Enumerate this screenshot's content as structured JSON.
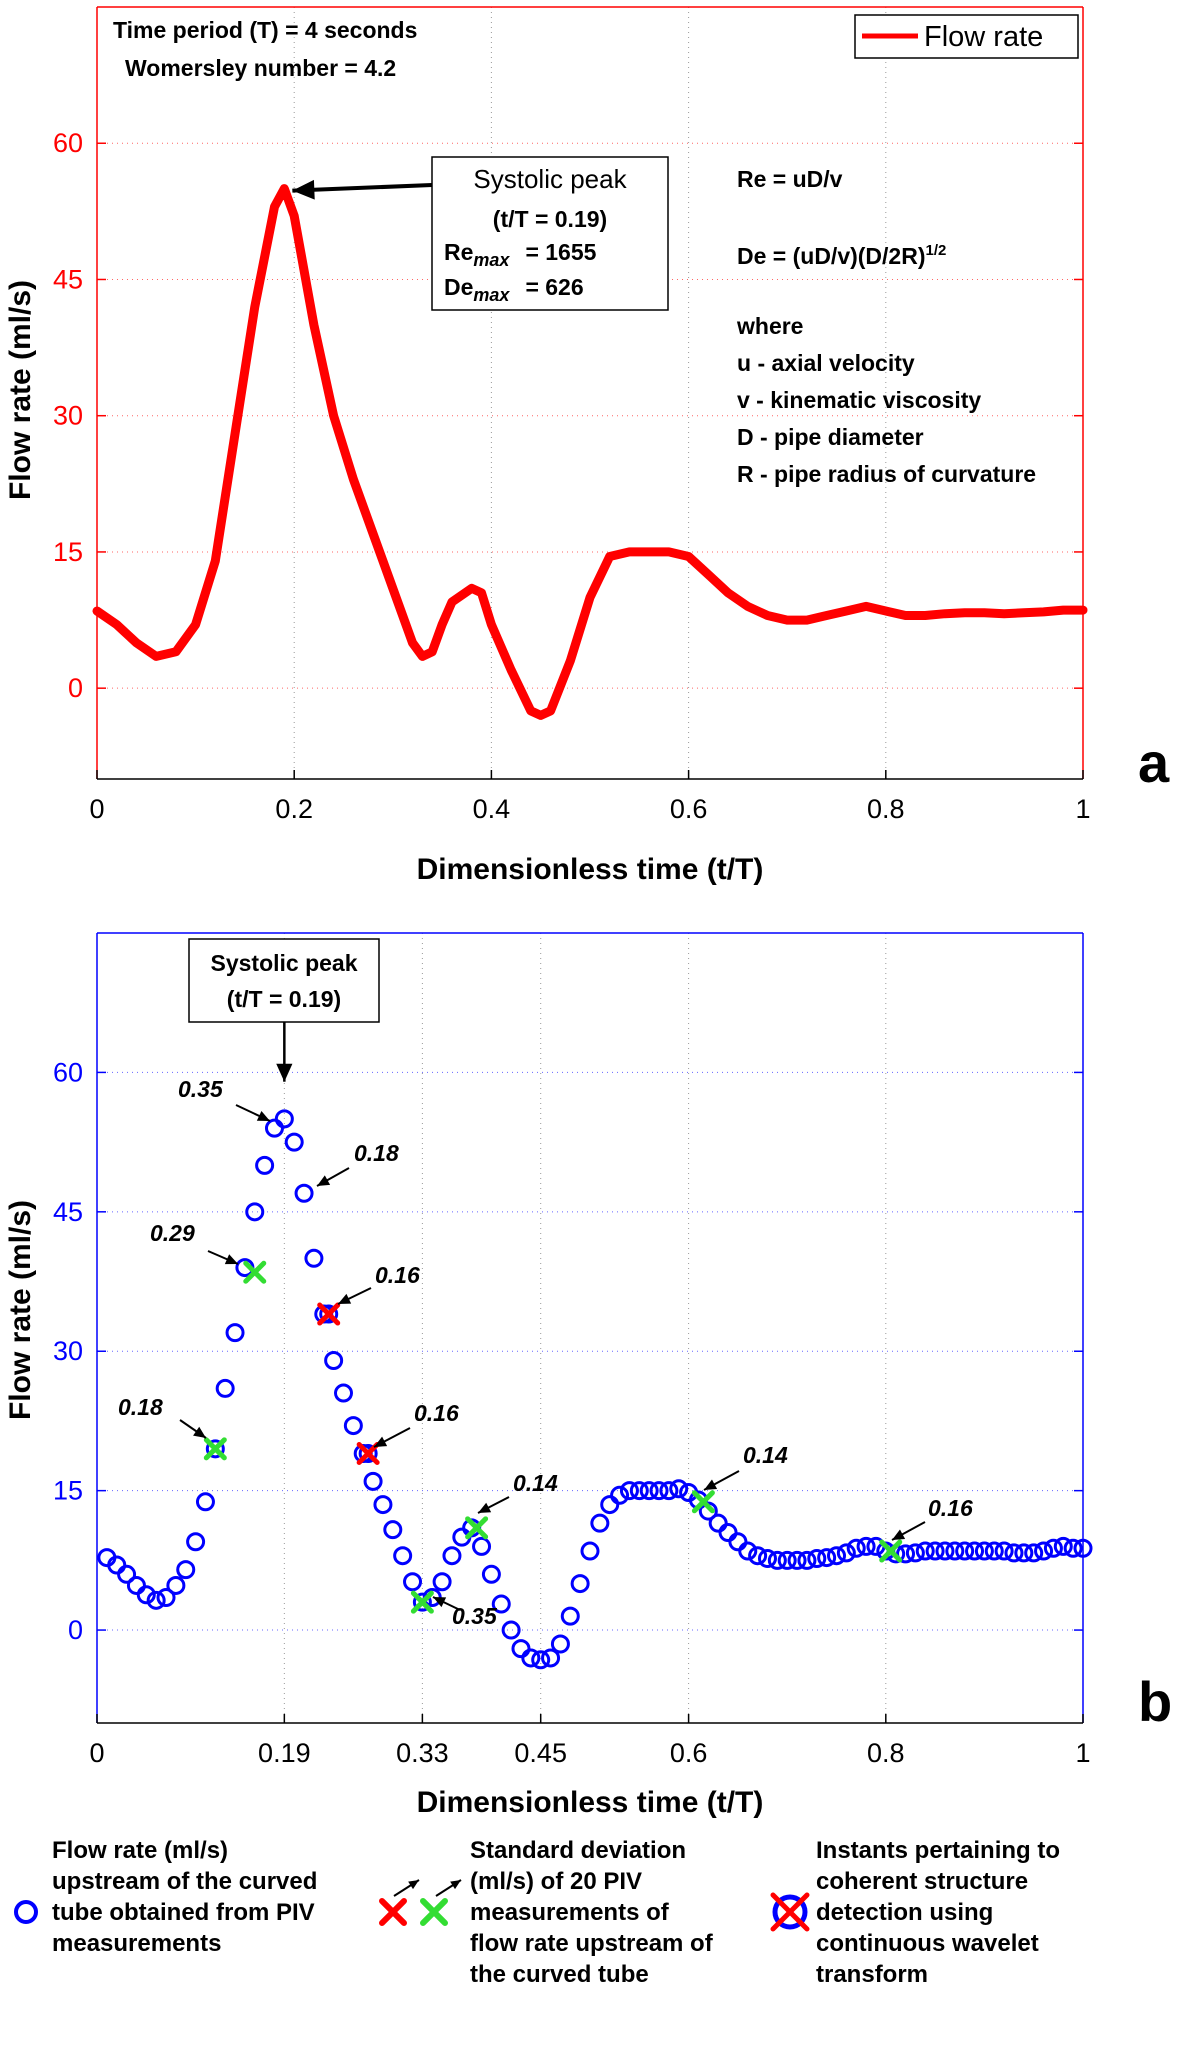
{
  "chart_data": [
    {
      "panel": "a",
      "type": "line",
      "title": "",
      "xlabel": "Dimensionless time (t/T)",
      "ylabel": "Flow rate (ml/s)",
      "xlim": [
        0,
        1
      ],
      "ylim": [
        -10,
        75
      ],
      "xticks": [
        0,
        0.2,
        0.4,
        0.6,
        0.8,
        1
      ],
      "xtick_labels": [
        "0",
        "0.2",
        "0.4",
        "0.6",
        "0.8",
        "1"
      ],
      "yticks": [
        0,
        15,
        30,
        45,
        60
      ],
      "ytick_labels": [
        "0",
        "15",
        "30",
        "45",
        "60"
      ],
      "grid": "vertical dotted",
      "legend": {
        "position": "top-right",
        "entries": [
          "Flow rate"
        ]
      },
      "series": [
        {
          "name": "Flow rate",
          "color": "#ff0000",
          "x": [
            0,
            0.02,
            0.04,
            0.06,
            0.08,
            0.1,
            0.12,
            0.14,
            0.16,
            0.18,
            0.19,
            0.2,
            0.22,
            0.24,
            0.26,
            0.28,
            0.3,
            0.32,
            0.33,
            0.34,
            0.35,
            0.36,
            0.38,
            0.39,
            0.4,
            0.42,
            0.44,
            0.45,
            0.46,
            0.48,
            0.5,
            0.52,
            0.54,
            0.56,
            0.58,
            0.6,
            0.62,
            0.64,
            0.66,
            0.68,
            0.7,
            0.72,
            0.74,
            0.76,
            0.78,
            0.8,
            0.82,
            0.84,
            0.86,
            0.88,
            0.9,
            0.92,
            0.94,
            0.96,
            0.98,
            1
          ],
          "y": [
            8.5,
            7,
            5,
            3.5,
            4,
            7,
            14,
            28,
            42,
            53,
            55,
            52,
            40,
            30,
            23,
            17,
            11,
            5,
            3.5,
            4,
            7,
            9.5,
            11,
            10.5,
            7,
            2,
            -2.5,
            -3,
            -2.5,
            3,
            10,
            14.5,
            15,
            15,
            15,
            14.5,
            12.5,
            10.5,
            9,
            8,
            7.5,
            7.5,
            8,
            8.5,
            9,
            8.5,
            8,
            8,
            8.2,
            8.3,
            8.3,
            8.2,
            8.3,
            8.4,
            8.6,
            8.6
          ]
        }
      ],
      "annotations": {
        "top_left": [
          "Time period (T) = 4 seconds",
          "Womersley number = 4.2"
        ],
        "peak_box": {
          "title": "Systolic peak",
          "time": "(t/T = 0.19)",
          "re_label": "Re",
          "re_sub": "max",
          "re_value": "=  1655",
          "de_label": "De",
          "de_sub": "max",
          "de_value": "=  626",
          "target_x": 0.19,
          "target_y": 55
        },
        "formulas": {
          "re": "Re = uD/v",
          "de_main": "De = (uD/v)(D/2R)",
          "de_exp": "1/2",
          "where": "where",
          "definitions": [
            "u - axial velocity",
            "v - kinematic viscosity",
            "D - pipe diameter",
            "R - pipe radius of curvature"
          ]
        }
      },
      "panel_label": "a"
    },
    {
      "panel": "b",
      "type": "scatter",
      "title": "",
      "xlabel": "Dimensionless time (t/T)",
      "ylabel": "Flow rate (ml/s)",
      "xlim": [
        0,
        1
      ],
      "ylim": [
        -10,
        75
      ],
      "xticks": [
        0,
        0.19,
        0.33,
        0.45,
        0.6,
        0.8,
        1
      ],
      "xtick_labels": [
        "0",
        "0.19",
        "0.33",
        "0.45",
        "0.6",
        "0.8",
        "1"
      ],
      "yticks": [
        0,
        15,
        30,
        45,
        60
      ],
      "ytick_labels": [
        "0",
        "15",
        "30",
        "45",
        "60"
      ],
      "grid": "dotted",
      "series": [
        {
          "name": "Flow rate (ml/s) upstream of the curved tube obtained from PIV measurements",
          "marker": "circle",
          "color": "#0000ff",
          "x": [
            0.01,
            0.02,
            0.03,
            0.04,
            0.05,
            0.06,
            0.07,
            0.08,
            0.09,
            0.1,
            0.11,
            0.12,
            0.13,
            0.14,
            0.15,
            0.16,
            0.17,
            0.18,
            0.19,
            0.2,
            0.21,
            0.22,
            0.23,
            0.24,
            0.25,
            0.26,
            0.27,
            0.28,
            0.29,
            0.3,
            0.31,
            0.32,
            0.33,
            0.34,
            0.35,
            0.36,
            0.37,
            0.38,
            0.39,
            0.4,
            0.41,
            0.42,
            0.43,
            0.44,
            0.45,
            0.46,
            0.47,
            0.48,
            0.49,
            0.5,
            0.51,
            0.52,
            0.53,
            0.54,
            0.55,
            0.56,
            0.57,
            0.58,
            0.59,
            0.6,
            0.61,
            0.62,
            0.63,
            0.64,
            0.65,
            0.66,
            0.67,
            0.68,
            0.69,
            0.7,
            0.71,
            0.72,
            0.73,
            0.74,
            0.75,
            0.76,
            0.77,
            0.78,
            0.79,
            0.8,
            0.81,
            0.82,
            0.83,
            0.84,
            0.85,
            0.86,
            0.87,
            0.88,
            0.89,
            0.9,
            0.91,
            0.92,
            0.93,
            0.94,
            0.95,
            0.96,
            0.97,
            0.98,
            0.99,
            1.0
          ],
          "y": [
            7.8,
            7,
            6,
            4.8,
            3.8,
            3.2,
            3.5,
            4.8,
            6.5,
            9.5,
            13.8,
            19.5,
            26,
            32,
            39,
            45,
            50,
            54,
            55,
            52.5,
            47,
            40,
            34,
            29,
            25.5,
            22,
            19,
            16,
            13.5,
            10.8,
            8,
            5.2,
            3,
            3.5,
            5.2,
            8,
            10,
            11,
            9,
            6,
            2.8,
            0,
            -2,
            -3,
            -3.2,
            -3,
            -1.5,
            1.5,
            5,
            8.5,
            11.5,
            13.5,
            14.5,
            15,
            15,
            15,
            15,
            15,
            15.2,
            14.8,
            14,
            12.8,
            11.5,
            10.5,
            9.5,
            8.5,
            8,
            7.7,
            7.5,
            7.5,
            7.5,
            7.5,
            7.7,
            7.8,
            8,
            8.3,
            8.8,
            9,
            9,
            8.5,
            8.2,
            8.2,
            8.3,
            8.5,
            8.5,
            8.5,
            8.5,
            8.5,
            8.5,
            8.5,
            8.5,
            8.5,
            8.3,
            8.3,
            8.3,
            8.5,
            8.8,
            9,
            8.8,
            8.8
          ]
        },
        {
          "name": "Standard deviation (ml/s) of 20 PIV measurements of flow rate upstream of the curved tube",
          "marker": "x",
          "points": [
            {
              "x": 0.12,
              "y": 19.5,
              "color": "#33dd33",
              "sd": "0.18"
            },
            {
              "x": 0.16,
              "y": 38.5,
              "color": "#33dd33",
              "sd": "0.29"
            },
            {
              "x": 0.19,
              "y": 55,
              "color": "none",
              "sd": "0.35"
            },
            {
              "x": 0.215,
              "y": 47,
              "color": "none",
              "sd": "0.18"
            },
            {
              "x": 0.235,
              "y": 34,
              "color": "#ff0000",
              "sd": "0.16"
            },
            {
              "x": 0.275,
              "y": 19,
              "color": "#ff0000",
              "sd": "0.16"
            },
            {
              "x": 0.33,
              "y": 3,
              "color": "#33dd33",
              "sd": "0.35"
            },
            {
              "x": 0.385,
              "y": 11,
              "color": "#33dd33",
              "sd": "0.14"
            },
            {
              "x": 0.615,
              "y": 13.8,
              "color": "#33dd33",
              "sd": "0.14"
            },
            {
              "x": 0.805,
              "y": 8.5,
              "color": "#33dd33",
              "sd": "0.16"
            }
          ]
        }
      ],
      "annotations": {
        "peak_box": {
          "title": "Systolic peak",
          "time": "(t/T = 0.19)",
          "target_x": 0.19,
          "target_y": 59
        }
      },
      "panel_label": "b"
    }
  ],
  "legend_bottom": {
    "item1": [
      "Flow rate (ml/s)",
      "upstream of the curved",
      "tube obtained from PIV",
      "measurements"
    ],
    "item2": [
      "Standard deviation",
      "(ml/s) of 20 PIV",
      "measurements of",
      "flow rate upstream of",
      "the curved tube"
    ],
    "item3": [
      "Instants pertaining to",
      "coherent structure",
      "detection using",
      "continuous wavelet",
      "transform"
    ]
  },
  "colors": {
    "red": "#ff0000",
    "blue": "#0000ff",
    "green": "#33dd33",
    "black": "#000000"
  }
}
